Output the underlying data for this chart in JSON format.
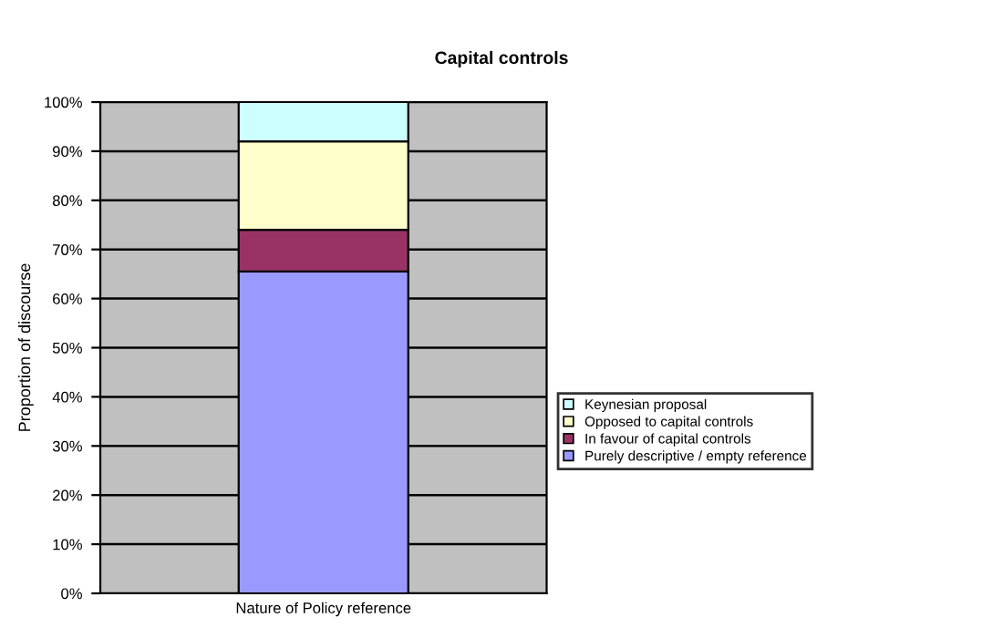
{
  "chart_data": {
    "type": "bar",
    "stacked": true,
    "title": "Capital controls",
    "ylabel": "Proportion of discourse",
    "categories": [
      "Nature of Policy reference"
    ],
    "series": [
      {
        "name": "Purely descriptive / empty reference",
        "color": "#9999ff",
        "values": [
          65.5
        ]
      },
      {
        "name": "In favour of capital controls",
        "color": "#993366",
        "values": [
          8.5
        ]
      },
      {
        "name": "Opposed to capital controls",
        "color": "#ffffcc",
        "values": [
          18
        ]
      },
      {
        "name": "Keynesian proposal",
        "color": "#ccffff",
        "values": [
          8
        ]
      }
    ],
    "ylim": [
      0,
      100
    ],
    "yticks": [
      {
        "value": 0,
        "label": "0%"
      },
      {
        "value": 10,
        "label": "10%"
      },
      {
        "value": 20,
        "label": "20%"
      },
      {
        "value": 30,
        "label": "30%"
      },
      {
        "value": 40,
        "label": "40%"
      },
      {
        "value": 50,
        "label": "50%"
      },
      {
        "value": 60,
        "label": "60%"
      },
      {
        "value": 70,
        "label": "70%"
      },
      {
        "value": 80,
        "label": "80%"
      },
      {
        "value": 90,
        "label": "90%"
      },
      {
        "value": 100,
        "label": "100%"
      }
    ],
    "grid": "y",
    "legend": "right"
  }
}
